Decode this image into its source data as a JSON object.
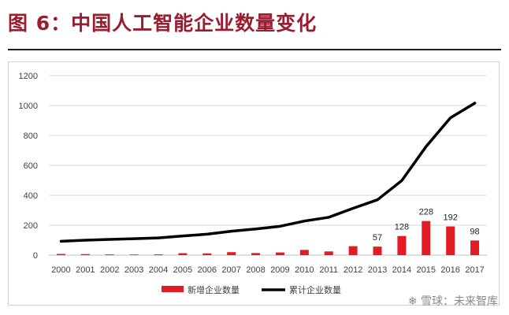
{
  "page": {
    "title": "图 6：中国人工智能企业数量变化",
    "watermark": "雪球：未来智库",
    "watermark_icon": "snowball-logo-icon"
  },
  "colors": {
    "title": "#9b1c2e",
    "bar": "#e31b23",
    "line": "#000000",
    "grid": "#d9d9d9"
  },
  "chart_data": {
    "type": "bar+line",
    "title": "",
    "categories": [
      "2000",
      "2001",
      "2002",
      "2003",
      "2004",
      "2005",
      "2006",
      "2007",
      "2008",
      "2009",
      "2010",
      "2011",
      "2012",
      "2013",
      "2014",
      "2015",
      "2016",
      "2017"
    ],
    "series": [
      {
        "name": "新增企业数量",
        "type": "bar",
        "values": [
          8,
          7,
          5,
          4,
          5,
          13,
          12,
          20,
          14,
          18,
          35,
          25,
          60,
          57,
          128,
          228,
          192,
          98
        ],
        "labels": [
          "",
          "",
          "",
          "",
          "",
          "",
          "",
          "",
          "",
          "",
          "",
          "",
          "",
          "57",
          "128",
          "228",
          "192",
          "98"
        ]
      },
      {
        "name": "累计企业数量",
        "type": "line",
        "values": [
          93,
          100,
          105,
          110,
          115,
          128,
          140,
          160,
          175,
          193,
          228,
          253,
          313,
          370,
          498,
          726,
          918,
          1016
        ]
      }
    ],
    "y_ticks": [
      "0",
      "200",
      "400",
      "600",
      "800",
      "1000",
      "1200"
    ],
    "ylim": [
      0,
      1200
    ],
    "xlabel": "",
    "ylabel": "",
    "grid": true,
    "legend": "bottom-center"
  }
}
